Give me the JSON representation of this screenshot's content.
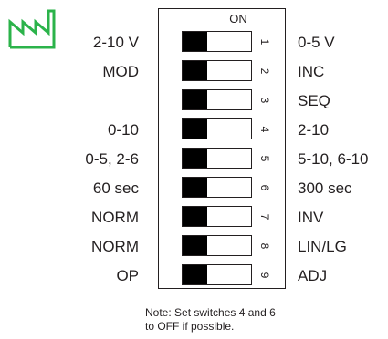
{
  "header": {
    "on_label": "ON",
    "logo_icon": "factory-icon",
    "logo_color": "#2bb34a"
  },
  "switches": [
    {
      "number": "1",
      "left": "2-10 V",
      "right": "0-5 V"
    },
    {
      "number": "2",
      "left": "MOD",
      "right": "INC"
    },
    {
      "number": "3",
      "left": "",
      "right": "SEQ"
    },
    {
      "number": "4",
      "left": "0-10",
      "right": "2-10"
    },
    {
      "number": "5",
      "left": "0-5, 2-6",
      "right": "5-10, 6-10"
    },
    {
      "number": "6",
      "left": "60 sec",
      "right": "300 sec"
    },
    {
      "number": "7",
      "left": "NORM",
      "right": "INV"
    },
    {
      "number": "8",
      "left": "NORM",
      "right": "LIN/LG"
    },
    {
      "number": "9",
      "left": "OP",
      "right": "ADJ"
    }
  ],
  "note": {
    "line1": "Note:  Set switches 4 and 6",
    "line2": "to OFF if possible."
  }
}
